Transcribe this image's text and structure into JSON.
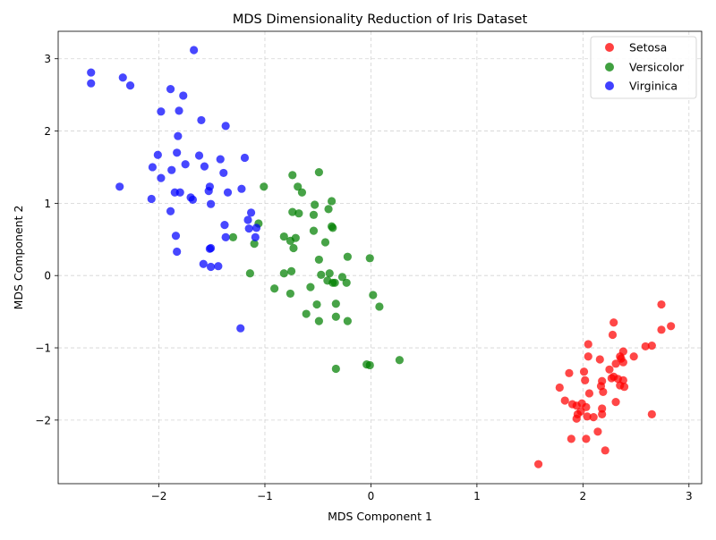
{
  "chart_data": {
    "type": "scatter",
    "title": "MDS Dimensionality Reduction of Iris Dataset",
    "xlabel": "MDS Component 1",
    "ylabel": "MDS Component 2",
    "xlim": [
      -2.95,
      3.12
    ],
    "ylim": [
      -2.88,
      3.38
    ],
    "xticks": [
      -2,
      -1,
      0,
      1,
      2,
      3
    ],
    "yticks": [
      -2,
      -1,
      0,
      1,
      2,
      3
    ],
    "grid": true,
    "legend_position": "top-right",
    "series": [
      {
        "name": "Setosa",
        "color": "#ff0000",
        "points": [
          [
            2.05,
            -0.95
          ],
          [
            2.29,
            -0.65
          ],
          [
            2.28,
            -0.82
          ],
          [
            2.74,
            -0.4
          ],
          [
            2.74,
            -0.75
          ],
          [
            2.83,
            -0.7
          ],
          [
            2.65,
            -0.97
          ],
          [
            2.59,
            -0.98
          ],
          [
            2.48,
            -1.12
          ],
          [
            2.38,
            -1.05
          ],
          [
            2.35,
            -1.12
          ],
          [
            2.38,
            -1.2
          ],
          [
            2.36,
            -1.15
          ],
          [
            2.31,
            -1.22
          ],
          [
            2.05,
            -1.12
          ],
          [
            1.87,
            -1.35
          ],
          [
            2.01,
            -1.33
          ],
          [
            2.16,
            -1.16
          ],
          [
            2.25,
            -1.3
          ],
          [
            2.29,
            -1.4
          ],
          [
            2.33,
            -1.43
          ],
          [
            2.02,
            -1.45
          ],
          [
            2.18,
            -1.46
          ],
          [
            2.38,
            -1.45
          ],
          [
            1.78,
            -1.55
          ],
          [
            2.17,
            -1.53
          ],
          [
            2.35,
            -1.52
          ],
          [
            2.39,
            -1.54
          ],
          [
            2.06,
            -1.63
          ],
          [
            2.19,
            -1.61
          ],
          [
            1.83,
            -1.73
          ],
          [
            2.31,
            -1.75
          ],
          [
            1.9,
            -1.78
          ],
          [
            1.94,
            -1.8
          ],
          [
            1.99,
            -1.77
          ],
          [
            2.03,
            -1.82
          ],
          [
            2.18,
            -1.84
          ],
          [
            1.95,
            -1.92
          ],
          [
            1.98,
            -1.88
          ],
          [
            2.04,
            -1.95
          ],
          [
            2.18,
            -1.92
          ],
          [
            2.1,
            -1.96
          ],
          [
            2.65,
            -1.92
          ],
          [
            1.94,
            -1.98
          ],
          [
            2.14,
            -2.16
          ],
          [
            1.89,
            -2.26
          ],
          [
            2.03,
            -2.26
          ],
          [
            2.21,
            -2.42
          ],
          [
            1.58,
            -2.61
          ],
          [
            2.27,
            -1.42
          ]
        ]
      },
      {
        "name": "Versicolor",
        "color": "#008000",
        "points": [
          [
            -0.74,
            1.39
          ],
          [
            -0.49,
            1.43
          ],
          [
            -1.01,
            1.23
          ],
          [
            -0.69,
            1.23
          ],
          [
            -0.65,
            1.15
          ],
          [
            -0.37,
            1.03
          ],
          [
            -0.53,
            0.98
          ],
          [
            -0.74,
            0.88
          ],
          [
            -0.68,
            0.86
          ],
          [
            -0.54,
            0.84
          ],
          [
            -0.4,
            0.92
          ],
          [
            -0.37,
            0.68
          ],
          [
            -0.36,
            0.66
          ],
          [
            -1.06,
            0.72
          ],
          [
            -1.3,
            0.53
          ],
          [
            -1.1,
            0.44
          ],
          [
            -0.54,
            0.62
          ],
          [
            -0.82,
            0.54
          ],
          [
            -0.71,
            0.52
          ],
          [
            -0.76,
            0.48
          ],
          [
            -0.73,
            0.38
          ],
          [
            -0.43,
            0.46
          ],
          [
            -0.49,
            0.22
          ],
          [
            -0.22,
            0.26
          ],
          [
            -0.01,
            0.24
          ],
          [
            -0.75,
            0.06
          ],
          [
            -0.82,
            0.03
          ],
          [
            -1.14,
            0.03
          ],
          [
            -0.47,
            0.01
          ],
          [
            -0.39,
            0.03
          ],
          [
            -0.41,
            -0.07
          ],
          [
            -0.36,
            -0.1
          ],
          [
            -0.27,
            -0.02
          ],
          [
            -0.23,
            -0.1
          ],
          [
            -0.34,
            -0.1
          ],
          [
            -0.57,
            -0.16
          ],
          [
            -0.91,
            -0.18
          ],
          [
            -0.76,
            -0.25
          ],
          [
            0.02,
            -0.27
          ],
          [
            -0.51,
            -0.4
          ],
          [
            -0.33,
            -0.39
          ],
          [
            0.08,
            -0.43
          ],
          [
            -0.61,
            -0.53
          ],
          [
            -0.33,
            -0.57
          ],
          [
            -0.49,
            -0.63
          ],
          [
            -0.22,
            -0.63
          ],
          [
            0.27,
            -1.17
          ],
          [
            -0.04,
            -1.23
          ],
          [
            -0.01,
            -1.24
          ],
          [
            -0.33,
            -1.29
          ]
        ]
      },
      {
        "name": "Virginica",
        "color": "#0000ff",
        "points": [
          [
            -1.67,
            3.12
          ],
          [
            -2.64,
            2.81
          ],
          [
            -2.64,
            2.66
          ],
          [
            -2.34,
            2.74
          ],
          [
            -2.27,
            2.63
          ],
          [
            -1.89,
            2.58
          ],
          [
            -1.77,
            2.49
          ],
          [
            -1.98,
            2.27
          ],
          [
            -1.81,
            2.28
          ],
          [
            -1.6,
            2.15
          ],
          [
            -1.37,
            2.07
          ],
          [
            -1.82,
            1.93
          ],
          [
            -2.01,
            1.67
          ],
          [
            -1.83,
            1.7
          ],
          [
            -1.62,
            1.66
          ],
          [
            -1.42,
            1.61
          ],
          [
            -1.19,
            1.63
          ],
          [
            -2.06,
            1.5
          ],
          [
            -1.75,
            1.54
          ],
          [
            -1.57,
            1.51
          ],
          [
            -1.88,
            1.46
          ],
          [
            -1.39,
            1.42
          ],
          [
            -1.98,
            1.35
          ],
          [
            -2.37,
            1.23
          ],
          [
            -1.52,
            1.23
          ],
          [
            -1.22,
            1.2
          ],
          [
            -1.85,
            1.15
          ],
          [
            -1.8,
            1.15
          ],
          [
            -1.53,
            1.17
          ],
          [
            -1.35,
            1.15
          ],
          [
            -2.07,
            1.06
          ],
          [
            -1.7,
            1.08
          ],
          [
            -1.68,
            1.05
          ],
          [
            -1.51,
            0.99
          ],
          [
            -1.89,
            0.89
          ],
          [
            -1.13,
            0.87
          ],
          [
            -1.16,
            0.77
          ],
          [
            -1.38,
            0.7
          ],
          [
            -1.15,
            0.65
          ],
          [
            -1.08,
            0.66
          ],
          [
            -1.09,
            0.53
          ],
          [
            -1.37,
            0.53
          ],
          [
            -1.84,
            0.55
          ],
          [
            -1.52,
            0.37
          ],
          [
            -1.51,
            0.38
          ],
          [
            -1.83,
            0.33
          ],
          [
            -1.58,
            0.16
          ],
          [
            -1.51,
            0.12
          ],
          [
            -1.44,
            0.13
          ],
          [
            -1.23,
            -0.73
          ]
        ]
      }
    ]
  }
}
